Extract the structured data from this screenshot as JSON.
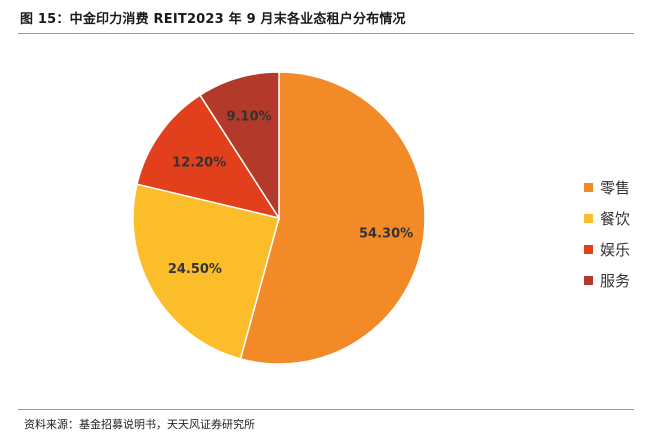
{
  "header": {
    "title": "图 15：中金印力消费 REIT2023 年 9 月末各业态租户分布情况"
  },
  "footer": {
    "source": "资料来源：基金招募说明书，天天风证券研究所"
  },
  "chart_data": {
    "type": "pie",
    "title": "图 15：中金印力消费 REIT2023 年 9 月末各业态租户分布情况",
    "categories": [
      "零售",
      "餐饮",
      "娱乐",
      "服务"
    ],
    "values": [
      54.3,
      24.5,
      12.2,
      9.1
    ],
    "labels": [
      "54.30%",
      "24.50%",
      "12.20%",
      "9.10%"
    ],
    "colors": [
      "#f28a27",
      "#fbbd2a",
      "#e2401c",
      "#b33a2a"
    ],
    "legend_position": "right",
    "start_angle": "12 o'clock",
    "direction": "clockwise"
  }
}
